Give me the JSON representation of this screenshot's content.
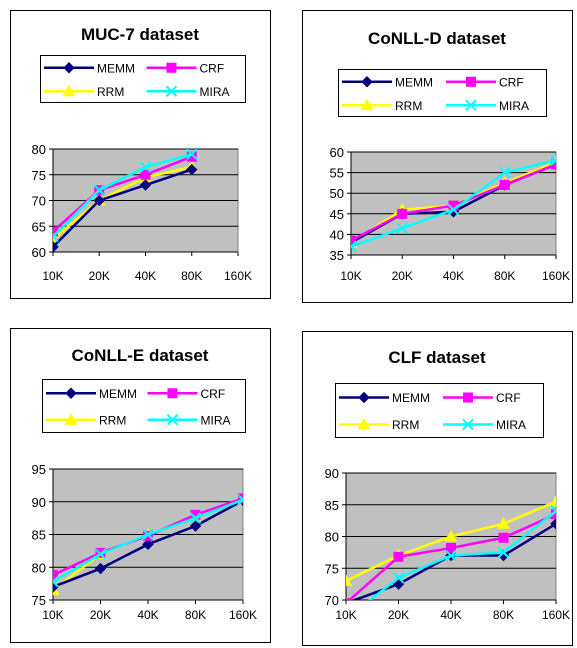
{
  "colors": {
    "MEMM": "#000080",
    "CRF": "#ff00ff",
    "RRM": "#ffff00",
    "MIRA": "#00ffff",
    "plot_background": "#c0c0c0",
    "gridline": "#000000"
  },
  "chart_data": [
    {
      "type": "line",
      "title": "MUC-7 dataset",
      "xlabel": "",
      "ylabel": "",
      "categories": [
        "10K",
        "20K",
        "40K",
        "80K",
        "160K"
      ],
      "ylim": [
        60,
        80
      ],
      "yticks": [
        60,
        65,
        70,
        75,
        80
      ],
      "grid": true,
      "legend": "top",
      "series": [
        {
          "name": "MEMM",
          "values": [
            61,
            70,
            73,
            76,
            null
          ],
          "marker": "diamond"
        },
        {
          "name": "CRF",
          "values": [
            64,
            72,
            75,
            78.5,
            null
          ],
          "marker": "square"
        },
        {
          "name": "RRM",
          "values": [
            62.5,
            70,
            74.5,
            76.5,
            null
          ],
          "marker": "triangle"
        },
        {
          "name": "MIRA",
          "values": [
            63,
            72,
            76.5,
            79,
            null
          ],
          "marker": "x"
        }
      ]
    },
    {
      "type": "line",
      "title": "CoNLL-D dataset",
      "xlabel": "",
      "ylabel": "",
      "categories": [
        "10K",
        "20K",
        "40K",
        "80K",
        "160K"
      ],
      "ylim": [
        35,
        60
      ],
      "yticks": [
        35,
        40,
        45,
        50,
        55,
        60
      ],
      "grid": true,
      "legend": "top",
      "series": [
        {
          "name": "MEMM",
          "values": [
            38,
            45,
            45.5,
            52,
            57
          ],
          "marker": "diamond"
        },
        {
          "name": "CRF",
          "values": [
            38.5,
            45,
            47,
            52,
            57
          ],
          "marker": "square"
        },
        {
          "name": "RRM",
          "values": [
            38,
            46,
            47,
            52.5,
            57.5
          ],
          "marker": "triangle"
        },
        {
          "name": "MIRA",
          "values": [
            37,
            41.5,
            46,
            55,
            58
          ],
          "marker": "x"
        }
      ]
    },
    {
      "type": "line",
      "title": "CoNLL-E dataset",
      "xlabel": "",
      "ylabel": "",
      "categories": [
        "10K",
        "20K",
        "40K",
        "80K",
        "160K"
      ],
      "ylim": [
        75,
        95
      ],
      "yticks": [
        75,
        80,
        85,
        90,
        95
      ],
      "grid": true,
      "legend": "top",
      "series": [
        {
          "name": "MEMM",
          "values": [
            77,
            79.8,
            83.5,
            86.3,
            90.2
          ],
          "marker": "diamond"
        },
        {
          "name": "CRF",
          "values": [
            78.8,
            82.2,
            84.8,
            88,
            90.5
          ],
          "marker": "square"
        },
        {
          "name": "RRM",
          "values": [
            76.5,
            82,
            85,
            87.5,
            90.3
          ],
          "marker": "triangle"
        },
        {
          "name": "MIRA",
          "values": [
            77.8,
            82,
            85,
            87.5,
            90.3
          ],
          "marker": "x"
        }
      ]
    },
    {
      "type": "line",
      "title": "CLF dataset",
      "xlabel": "",
      "ylabel": "",
      "categories": [
        "10K",
        "20K",
        "40K",
        "80K",
        "160K"
      ],
      "ylim": [
        70,
        90
      ],
      "yticks": [
        70,
        75,
        80,
        85,
        90
      ],
      "grid": true,
      "legend": "top",
      "series": [
        {
          "name": "MEMM",
          "values": [
            69.5,
            72.5,
            77,
            77,
            82
          ],
          "marker": "diamond"
        },
        {
          "name": "CRF",
          "values": [
            69.5,
            76.8,
            78.2,
            79.8,
            83.5
          ],
          "marker": "square"
        },
        {
          "name": "RRM",
          "values": [
            73,
            77,
            80,
            82,
            85.5
          ],
          "marker": "triangle"
        },
        {
          "name": "MIRA",
          "values": [
            67,
            73.5,
            77,
            77.5,
            84
          ],
          "marker": "x"
        }
      ]
    }
  ]
}
